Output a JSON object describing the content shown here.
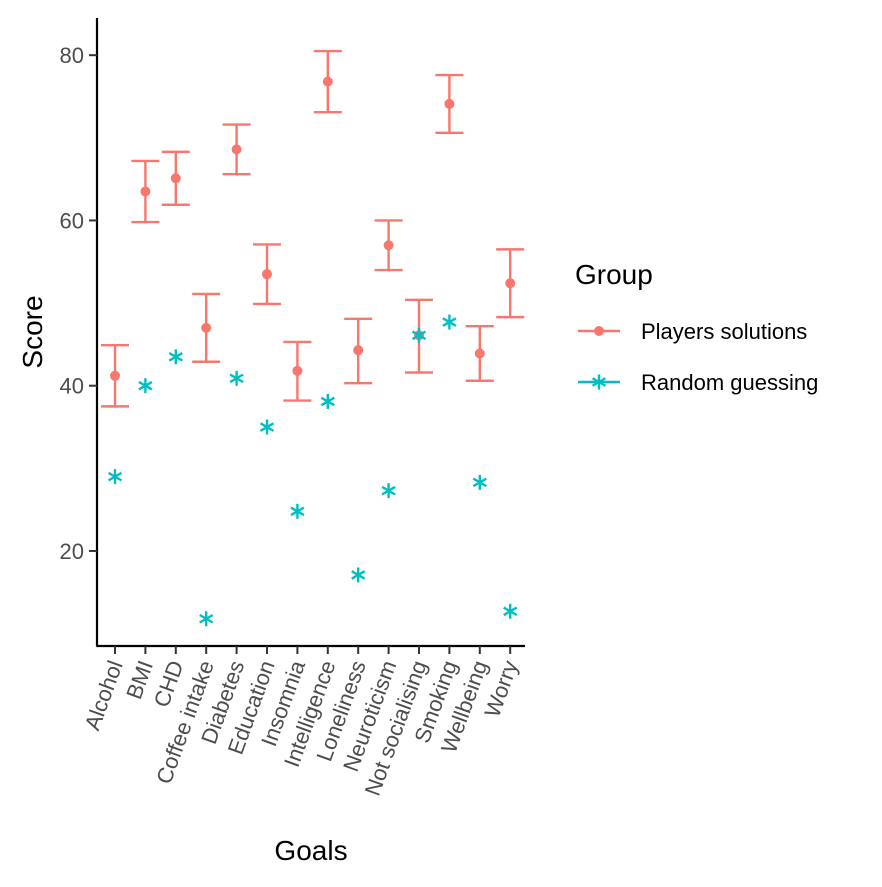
{
  "chart_data": {
    "type": "scatter",
    "title": "",
    "xlabel": "Goals",
    "ylabel": "Score",
    "ylim": [
      8.5,
      84.5
    ],
    "yticks": [
      20,
      40,
      60,
      80
    ],
    "grid": false,
    "legend": {
      "title": "Group",
      "placement": "right"
    },
    "categories": [
      "Alcohol",
      "BMI",
      "CHD",
      "Coffee intake",
      "Diabetes",
      "Education",
      "Insomnia",
      "Intelligence",
      "Loneliness",
      "Neuroticism",
      "Not socialising",
      "Smoking",
      "Wellbeing",
      "Worry"
    ],
    "series": [
      {
        "name": "Players solutions",
        "color": "#F8766D",
        "marker": "circle-with-errorbar",
        "values": [
          41.2,
          63.5,
          65.1,
          47.0,
          68.6,
          53.5,
          41.8,
          76.8,
          44.3,
          57.0,
          46.1,
          74.1,
          43.9,
          52.4
        ],
        "lower": [
          37.5,
          59.8,
          61.9,
          42.9,
          65.6,
          49.9,
          38.2,
          73.1,
          40.3,
          54.0,
          41.6,
          70.6,
          40.6,
          48.3
        ],
        "upper": [
          44.9,
          67.2,
          68.3,
          51.1,
          71.6,
          57.1,
          45.3,
          80.5,
          48.1,
          60.0,
          50.4,
          77.6,
          47.2,
          56.5
        ]
      },
      {
        "name": "Random guessing",
        "color": "#00BFC4",
        "marker": "asterisk",
        "values": [
          29.0,
          40.0,
          43.5,
          11.8,
          40.9,
          35.0,
          24.8,
          38.1,
          17.1,
          27.3,
          46.1,
          47.7,
          28.3,
          12.7
        ]
      }
    ]
  }
}
